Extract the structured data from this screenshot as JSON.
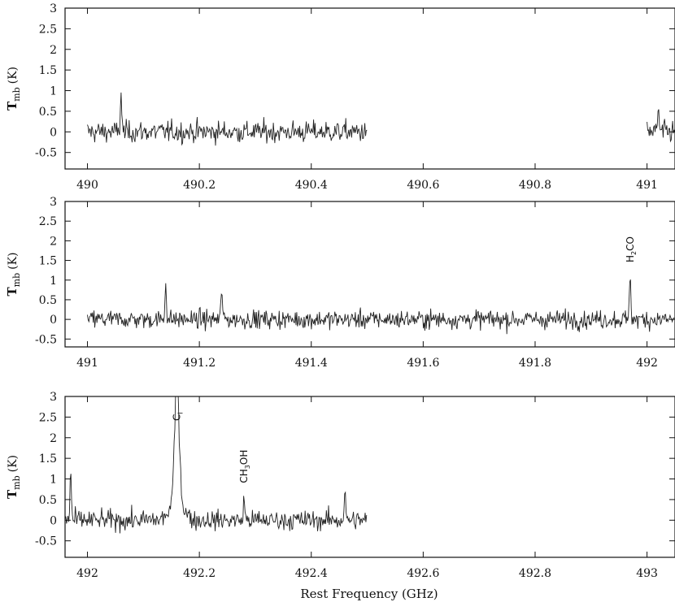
{
  "figure": {
    "xlabel": "Rest Frequency (GHz)",
    "colors": {
      "axes": "#111111",
      "trace": "#222222",
      "background": "#ffffff"
    }
  },
  "chart_data": [
    {
      "type": "line",
      "title": "",
      "ylabel": {
        "symbol": "T",
        "subscript": "mb",
        "unit": "(K)"
      },
      "xlim": [
        489.96,
        491.05
      ],
      "ylim": [
        -0.9,
        3
      ],
      "x_ticks": [
        490,
        490.2,
        490.4,
        490.6,
        490.8,
        491
      ],
      "x_tick_labels": [
        "490",
        "490.2",
        "490.4",
        "490.6",
        "490.8",
        "491"
      ],
      "y_ticks": [
        -0.5,
        0,
        0.5,
        1,
        1.5,
        2,
        2.5,
        3
      ],
      "y_tick_labels": [
        "-0.5",
        "0",
        "0.5",
        "1",
        "1.5",
        "2",
        "2.5",
        "3"
      ],
      "grid": false,
      "series": [
        {
          "name": "",
          "x": [
            490.0,
            490.06,
            490.12,
            490.2,
            490.3,
            490.4,
            490.5
          ],
          "y": [
            0,
            0.95,
            0.05,
            0.0,
            0.0,
            -0.05,
            0
          ]
        },
        {
          "name": "",
          "x": [
            491.0,
            491.02,
            491.05
          ],
          "y": [
            0,
            0.6,
            0
          ]
        }
      ],
      "noise_rms": 0.22,
      "annotations": []
    },
    {
      "type": "line",
      "title": "",
      "ylabel": {
        "symbol": "T",
        "subscript": "mb",
        "unit": "(K)"
      },
      "xlim": [
        490.96,
        492.05
      ],
      "ylim": [
        -0.7,
        3
      ],
      "x_ticks": [
        491,
        491.2,
        491.4,
        491.6,
        491.8,
        492
      ],
      "x_tick_labels": [
        "491",
        "491.2",
        "491.4",
        "491.6",
        "491.8",
        "492"
      ],
      "y_ticks": [
        -0.5,
        0,
        0.5,
        1,
        1.5,
        2,
        2.5,
        3
      ],
      "y_tick_labels": [
        "-0.5",
        "0",
        "0.5",
        "1",
        "1.5",
        "2",
        "2.5",
        "3"
      ],
      "grid": false,
      "series": [
        {
          "name": "",
          "x": [
            491.0,
            491.14,
            491.24,
            491.6,
            491.97,
            492.05
          ],
          "y": [
            0,
            1.05,
            0.85,
            0.1,
            1.25,
            0
          ]
        }
      ],
      "noise_rms": 0.2,
      "annotations": [
        {
          "label": "H",
          "sub": "2",
          "rest": "CO",
          "x": 491.97
        }
      ]
    },
    {
      "type": "line",
      "title": "",
      "ylabel": {
        "symbol": "T",
        "subscript": "mb",
        "unit": "(K)"
      },
      "xlim": [
        491.96,
        493.05
      ],
      "ylim": [
        -0.9,
        3
      ],
      "x_ticks": [
        492,
        492.2,
        492.4,
        492.6,
        492.8,
        493
      ],
      "x_tick_labels": [
        "492",
        "492.2",
        "492.4",
        "492.6",
        "492.8",
        "493"
      ],
      "y_ticks": [
        -0.5,
        0,
        0.5,
        1,
        1.5,
        2,
        2.5,
        3
      ],
      "y_tick_labels": [
        "-0.5",
        "0",
        "0.5",
        "1",
        "1.5",
        "2",
        "2.5",
        "3"
      ],
      "grid": false,
      "series": [
        {
          "name": "",
          "x": [
            491.96,
            491.97,
            492.16,
            492.28,
            492.46,
            492.5
          ],
          "y": [
            0,
            1.25,
            3.0,
            0.55,
            0.75,
            0
          ]
        }
      ],
      "noise_rms": 0.2,
      "annotations": [
        {
          "label": "C",
          "sub": "I",
          "rest": "",
          "x": 492.16
        },
        {
          "label": "CH",
          "sub": "3",
          "rest": "OH",
          "x": 492.28
        }
      ]
    }
  ]
}
